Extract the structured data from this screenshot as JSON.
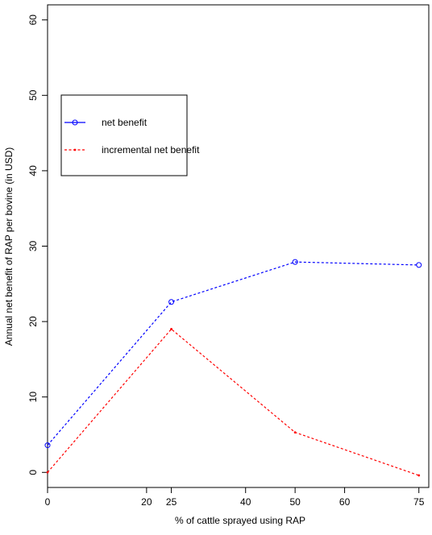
{
  "chart_data": {
    "type": "line",
    "title": "",
    "xlabel": "% of cattle sprayed using RAP",
    "ylabel": "Annual net benefit of RAP per bovine (in USD)",
    "xlim": [
      0,
      77
    ],
    "ylim": [
      -2,
      62
    ],
    "x_ticks": [
      0,
      20,
      25,
      40,
      50,
      60,
      75
    ],
    "y_ticks": [
      0,
      10,
      20,
      30,
      40,
      50,
      60
    ],
    "grid": false,
    "legend_position": "top-left",
    "series": [
      {
        "name": "net benefit",
        "color": "#0000ff",
        "line_style": "dashed",
        "marker": "circle",
        "x": [
          0,
          25,
          50,
          75
        ],
        "y": [
          3.6,
          22.6,
          27.9,
          27.5
        ]
      },
      {
        "name": "incremental net benefit",
        "color": "#ff0000",
        "line_style": "dashed",
        "marker": "small-point",
        "x": [
          0,
          25,
          50,
          75
        ],
        "y": [
          0,
          19,
          5.3,
          -0.4
        ]
      }
    ]
  }
}
